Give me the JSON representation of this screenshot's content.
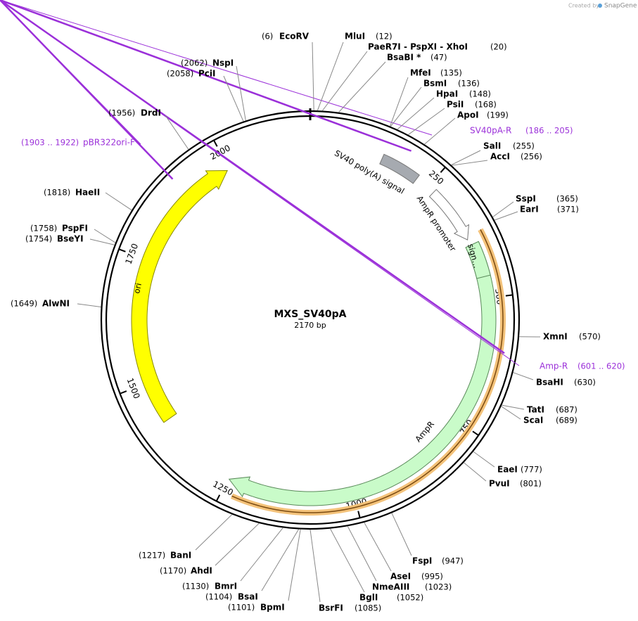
{
  "header": {
    "created_by": "Created by",
    "brand": "SnapGene"
  },
  "plasmid": {
    "name": "MXS_SV40pA",
    "size": "2170 bp"
  },
  "ticks": [
    250,
    500,
    750,
    1000,
    1250,
    1500,
    1750,
    2000
  ],
  "features": [
    {
      "label": "SV40 poly(A) signal"
    },
    {
      "label": "AmpR promoter"
    },
    {
      "label": "sign…"
    },
    {
      "label": "AmpR"
    },
    {
      "label": "ori"
    }
  ],
  "primers": [
    {
      "name": "SV40pA-R",
      "range": "(186 .. 205)"
    },
    {
      "name": "Amp-R",
      "range": "(601 .. 620)"
    },
    {
      "name": "pBR322ori-F",
      "range": "(1903 .. 1922)"
    }
  ],
  "sites": [
    {
      "name": "EcoRV",
      "position": "(6)"
    },
    {
      "name": "MluI",
      "position": "(12)"
    },
    {
      "name": "PaeR7I  - PspXI  - XhoI",
      "position": "(20)"
    },
    {
      "name": "BsaBI *",
      "position": "(47)"
    },
    {
      "name": "MfeI",
      "position": "(135)"
    },
    {
      "name": "BsmI",
      "position": "(136)"
    },
    {
      "name": "HpaI",
      "position": "(148)"
    },
    {
      "name": "PsiI",
      "position": "(168)"
    },
    {
      "name": "ApoI",
      "position": "(199)"
    },
    {
      "name": "SalI",
      "position": "(255)"
    },
    {
      "name": "AccI",
      "position": "(256)"
    },
    {
      "name": "SspI",
      "position": "(365)"
    },
    {
      "name": "EarI",
      "position": "(371)"
    },
    {
      "name": "XmnI",
      "position": "(570)"
    },
    {
      "name": "BsaHI",
      "position": "(630)"
    },
    {
      "name": "TatI",
      "position": "(687)"
    },
    {
      "name": "ScaI",
      "position": "(689)"
    },
    {
      "name": "EaeI",
      "position": "(777)"
    },
    {
      "name": "PvuI",
      "position": "(801)"
    },
    {
      "name": "FspI",
      "position": "(947)"
    },
    {
      "name": "AseI",
      "position": "(995)"
    },
    {
      "name": "NmeAIII",
      "position": "(1023)"
    },
    {
      "name": "BglI",
      "position": "(1052)"
    },
    {
      "name": "BsrFI",
      "position": "(1085)"
    },
    {
      "name": "BpmI",
      "position": "(1101)"
    },
    {
      "name": "BsaI",
      "position": "(1104)"
    },
    {
      "name": "BmrI",
      "position": "(1130)"
    },
    {
      "name": "AhdI",
      "position": "(1170)"
    },
    {
      "name": "BanI",
      "position": "(1217)"
    },
    {
      "name": "AlwNI",
      "position": "(1649)"
    },
    {
      "name": "BseYI",
      "position": "(1754)"
    },
    {
      "name": "PspFI",
      "position": "(1758)"
    },
    {
      "name": "HaeII",
      "position": "(1818)"
    },
    {
      "name": "DrdI",
      "position": "(1956)"
    },
    {
      "name": "PciI",
      "position": "(2058)"
    },
    {
      "name": "NspI",
      "position": "(2062)"
    }
  ]
}
